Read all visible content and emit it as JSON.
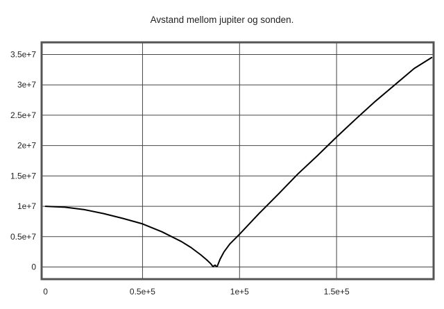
{
  "chart_data": {
    "type": "line",
    "title": "Avstand mellom jupiter og sonden.",
    "xlabel": "",
    "ylabel": "",
    "xlim": [
      -2000,
      200000
    ],
    "ylim": [
      -2000000,
      37000000
    ],
    "grid": true,
    "x_ticks": [
      {
        "value": 0,
        "label": "0"
      },
      {
        "value": 50000,
        "label": "0.5e+5"
      },
      {
        "value": 100000,
        "label": "1e+5"
      },
      {
        "value": 150000,
        "label": "1.5e+5"
      }
    ],
    "y_ticks": [
      {
        "value": 0,
        "label": "0"
      },
      {
        "value": 5000000,
        "label": "0.5e+7"
      },
      {
        "value": 10000000,
        "label": "1e+7"
      },
      {
        "value": 15000000,
        "label": "1.5e+7"
      },
      {
        "value": 20000000,
        "label": "2e+7"
      },
      {
        "value": 25000000,
        "label": "2.5e+7"
      },
      {
        "value": 30000000,
        "label": "3e+7"
      },
      {
        "value": 35000000,
        "label": "3.5e+7"
      }
    ],
    "series": [
      {
        "color": "#000000",
        "x": [
          0,
          10000,
          20000,
          30000,
          40000,
          50000,
          60000,
          70000,
          75000,
          80000,
          83000,
          85000,
          86000,
          86500,
          87000,
          87500,
          88000,
          88500,
          89000,
          90000,
          92000,
          95000,
          100000,
          110000,
          120000,
          130000,
          140000,
          150000,
          160000,
          170000,
          180000,
          190000,
          199000
        ],
        "y": [
          10000000,
          9850000,
          9450000,
          8800000,
          8000000,
          7100000,
          5800000,
          4200000,
          3200000,
          2000000,
          1200000,
          600000,
          200000,
          50000,
          250000,
          300000,
          80000,
          120000,
          500000,
          1300000,
          2500000,
          3800000,
          5400000,
          8800000,
          12000000,
          15300000,
          18300000,
          21400000,
          24400000,
          27300000,
          30000000,
          32700000,
          34500000
        ]
      }
    ]
  }
}
